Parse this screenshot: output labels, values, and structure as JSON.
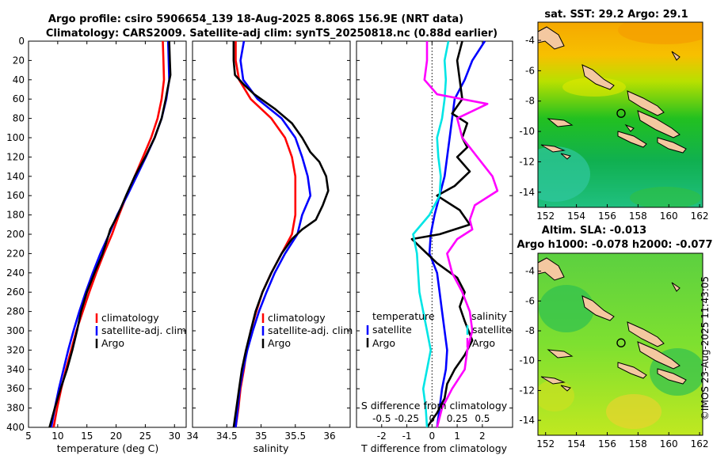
{
  "header": {
    "title_line1": "Argo profile: csiro 5906654_139 18-Aug-2025 8.806S 156.9E (NRT data)",
    "title_line2": "Climatology: CARS2009. Satellite-adj clim: synTS_20250818.nc (0.88d earlier)"
  },
  "footer": {
    "copyright": "©IMOS 23-Aug-2025 11:43:05"
  },
  "colors": {
    "climatology": "#ff0000",
    "satellite": "#0000ff",
    "argo": "#000000",
    "satellite_salinity": "#00e5e5",
    "argo_salinity": "#ff00ff",
    "land": "#f4c8a0"
  },
  "chart_data": [
    {
      "type": "line",
      "name": "temperature-profile",
      "xlabel": "temperature (deg C)",
      "ylabel": "",
      "xlim": [
        5,
        32
      ],
      "ylim": [
        0,
        400
      ],
      "y_reversed": true,
      "x_ticks": [
        5,
        10,
        15,
        20,
        25,
        30
      ],
      "y_ticks": [
        0,
        20,
        40,
        60,
        80,
        100,
        120,
        140,
        160,
        180,
        200,
        220,
        240,
        260,
        280,
        300,
        320,
        340,
        360,
        380,
        400
      ],
      "legend": [
        "climatology",
        "satellite-adj. clim",
        "Argo"
      ],
      "series": [
        {
          "name": "climatology",
          "color": "#ff0000",
          "points": [
            [
              28,
              0
            ],
            [
              28.1,
              20
            ],
            [
              28.2,
              40
            ],
            [
              27.8,
              60
            ],
            [
              27.1,
              80
            ],
            [
              26,
              100
            ],
            [
              24.6,
              120
            ],
            [
              23.2,
              140
            ],
            [
              21.8,
              160
            ],
            [
              20.5,
              180
            ],
            [
              19.3,
              200
            ],
            [
              17.9,
              220
            ],
            [
              16.6,
              240
            ],
            [
              15.4,
              260
            ],
            [
              14.3,
              280
            ],
            [
              13.2,
              300
            ],
            [
              12.3,
              320
            ],
            [
              11.4,
              340
            ],
            [
              10.6,
              360
            ],
            [
              9.9,
              380
            ],
            [
              9.3,
              400
            ]
          ]
        },
        {
          "name": "satellite-adj. clim",
          "color": "#0000ff",
          "points": [
            [
              28.9,
              0
            ],
            [
              29,
              20
            ],
            [
              29.1,
              40
            ],
            [
              28.6,
              60
            ],
            [
              27.8,
              80
            ],
            [
              26.6,
              100
            ],
            [
              25.1,
              120
            ],
            [
              23.5,
              140
            ],
            [
              21.9,
              160
            ],
            [
              20.2,
              180
            ],
            [
              18.8,
              200
            ],
            [
              17.3,
              220
            ],
            [
              16,
              240
            ],
            [
              14.8,
              260
            ],
            [
              13.7,
              280
            ],
            [
              12.7,
              300
            ],
            [
              11.8,
              320
            ],
            [
              11,
              340
            ],
            [
              10.2,
              360
            ],
            [
              9.5,
              380
            ],
            [
              8.9,
              400
            ]
          ]
        },
        {
          "name": "Argo",
          "color": "#000000",
          "points": [
            [
              29.1,
              0
            ],
            [
              29.2,
              20
            ],
            [
              29.3,
              35
            ],
            [
              28.8,
              50
            ],
            [
              28.5,
              60
            ],
            [
              27.8,
              80
            ],
            [
              26.6,
              100
            ],
            [
              25,
              120
            ],
            [
              23.2,
              140
            ],
            [
              21.7,
              160
            ],
            [
              20.3,
              180
            ],
            [
              19,
              195
            ],
            [
              18.5,
              205
            ],
            [
              17.7,
              220
            ],
            [
              16.3,
              240
            ],
            [
              15,
              260
            ],
            [
              14,
              280
            ],
            [
              13.3,
              300
            ],
            [
              12.5,
              320
            ],
            [
              11.6,
              340
            ],
            [
              10.5,
              360
            ],
            [
              9.5,
              380
            ],
            [
              8.6,
              400
            ]
          ]
        }
      ]
    },
    {
      "type": "line",
      "name": "salinity-profile",
      "xlabel": "salinity",
      "ylabel": "",
      "xlim": [
        34,
        36.3
      ],
      "ylim": [
        0,
        400
      ],
      "y_reversed": true,
      "x_ticks": [
        34,
        34.5,
        35,
        35.5,
        36
      ],
      "legend": [
        "climatology",
        "satellite-adj. clim",
        "Argo"
      ],
      "series": [
        {
          "name": "climatology",
          "color": "#ff0000",
          "points": [
            [
              34.63,
              0
            ],
            [
              34.63,
              20
            ],
            [
              34.68,
              40
            ],
            [
              34.85,
              60
            ],
            [
              35.15,
              80
            ],
            [
              35.35,
              100
            ],
            [
              35.45,
              120
            ],
            [
              35.5,
              140
            ],
            [
              35.5,
              160
            ],
            [
              35.5,
              180
            ],
            [
              35.45,
              200
            ],
            [
              35.3,
              220
            ],
            [
              35.15,
              240
            ],
            [
              35.02,
              260
            ],
            [
              34.93,
              280
            ],
            [
              34.85,
              300
            ],
            [
              34.79,
              320
            ],
            [
              34.75,
              340
            ],
            [
              34.7,
              360
            ],
            [
              34.67,
              380
            ],
            [
              34.63,
              400
            ]
          ]
        },
        {
          "name": "satellite-adj. clim",
          "color": "#0000ff",
          "points": [
            [
              34.75,
              0
            ],
            [
              34.7,
              20
            ],
            [
              34.74,
              40
            ],
            [
              34.95,
              60
            ],
            [
              35.3,
              80
            ],
            [
              35.5,
              100
            ],
            [
              35.6,
              120
            ],
            [
              35.68,
              140
            ],
            [
              35.72,
              160
            ],
            [
              35.6,
              180
            ],
            [
              35.53,
              200
            ],
            [
              35.35,
              220
            ],
            [
              35.2,
              240
            ],
            [
              35.08,
              260
            ],
            [
              34.97,
              280
            ],
            [
              34.88,
              300
            ],
            [
              34.8,
              320
            ],
            [
              34.74,
              340
            ],
            [
              34.69,
              360
            ],
            [
              34.66,
              380
            ],
            [
              34.63,
              400
            ]
          ]
        },
        {
          "name": "Argo",
          "color": "#000000",
          "points": [
            [
              34.6,
              0
            ],
            [
              34.6,
              20
            ],
            [
              34.62,
              35
            ],
            [
              34.75,
              45
            ],
            [
              34.9,
              55
            ],
            [
              35.2,
              70
            ],
            [
              35.45,
              85
            ],
            [
              35.6,
              100
            ],
            [
              35.72,
              115
            ],
            [
              35.85,
              125
            ],
            [
              35.95,
              140
            ],
            [
              35.98,
              155
            ],
            [
              35.9,
              170
            ],
            [
              35.8,
              185
            ],
            [
              35.6,
              195
            ],
            [
              35.45,
              205
            ],
            [
              35.3,
              220
            ],
            [
              35.15,
              240
            ],
            [
              35.02,
              260
            ],
            [
              34.92,
              280
            ],
            [
              34.85,
              300
            ],
            [
              34.78,
              320
            ],
            [
              34.72,
              340
            ],
            [
              34.68,
              360
            ],
            [
              34.64,
              380
            ],
            [
              34.6,
              400
            ]
          ]
        }
      ]
    },
    {
      "type": "line",
      "name": "difference-profile",
      "xlabel": "T difference from climatology",
      "x2label": "S difference from climatology",
      "ylabel": "",
      "xlim": [
        -3,
        3.2
      ],
      "ylim": [
        0,
        400
      ],
      "y_reversed": true,
      "x_ticks": [
        -2,
        -1,
        0,
        1,
        2
      ],
      "x2_ticks": [
        -0.5,
        -0.25,
        0,
        0.25,
        0.5
      ],
      "x2_tick_labels": [
        "-0.5",
        "-0.25",
        "0",
        "0.25",
        "0.5"
      ],
      "x2_scale": 4,
      "legend_temperature_title": "temperature",
      "legend_salinity_title": "salinity",
      "legend_temperature": [
        "satellite",
        "Argo"
      ],
      "legend_salinity": [
        "satellite",
        "Argo"
      ],
      "series": [
        {
          "name": "temperature satellite",
          "color": "#0000ff",
          "points": [
            [
              2.1,
              0
            ],
            [
              1.6,
              20
            ],
            [
              1.3,
              40
            ],
            [
              0.9,
              60
            ],
            [
              0.8,
              80
            ],
            [
              0.7,
              100
            ],
            [
              0.6,
              120
            ],
            [
              0.5,
              140
            ],
            [
              0.3,
              160
            ],
            [
              0.1,
              180
            ],
            [
              -0.05,
              200
            ],
            [
              -0.1,
              220
            ],
            [
              0.2,
              240
            ],
            [
              0.3,
              260
            ],
            [
              0.4,
              280
            ],
            [
              0.5,
              300
            ],
            [
              0.6,
              320
            ],
            [
              0.55,
              340
            ],
            [
              0.4,
              360
            ],
            [
              0.3,
              380
            ],
            [
              0.2,
              400
            ]
          ]
        },
        {
          "name": "temperature Argo",
          "color": "#000000",
          "points": [
            [
              1.2,
              0
            ],
            [
              1.0,
              20
            ],
            [
              1.1,
              40
            ],
            [
              1.2,
              60
            ],
            [
              0.8,
              75
            ],
            [
              1.4,
              85
            ],
            [
              1.2,
              100
            ],
            [
              1.4,
              110
            ],
            [
              1.0,
              120
            ],
            [
              1.5,
              135
            ],
            [
              0.9,
              150
            ],
            [
              0.2,
              160
            ],
            [
              1.1,
              175
            ],
            [
              1.5,
              190
            ],
            [
              0.3,
              200
            ],
            [
              -0.8,
              205
            ],
            [
              -0.4,
              215
            ],
            [
              0.2,
              230
            ],
            [
              1.0,
              245
            ],
            [
              1.3,
              260
            ],
            [
              1.1,
              275
            ],
            [
              1.3,
              290
            ],
            [
              1.6,
              310
            ],
            [
              1.3,
              325
            ],
            [
              0.9,
              340
            ],
            [
              0.6,
              355
            ],
            [
              0.5,
              370
            ],
            [
              0.2,
              385
            ],
            [
              -0.2,
              400
            ]
          ]
        },
        {
          "name": "salinity satellite",
          "color": "#00e5e5",
          "points": [
            [
              0.65,
              0
            ],
            [
              0.5,
              20
            ],
            [
              0.55,
              40
            ],
            [
              0.5,
              60
            ],
            [
              0.4,
              80
            ],
            [
              0.2,
              100
            ],
            [
              0.25,
              120
            ],
            [
              0.35,
              140
            ],
            [
              0.3,
              160
            ],
            [
              -0.1,
              180
            ],
            [
              -0.75,
              200
            ],
            [
              -0.6,
              220
            ],
            [
              -0.55,
              240
            ],
            [
              -0.5,
              260
            ],
            [
              -0.35,
              280
            ],
            [
              -0.2,
              300
            ],
            [
              -0.05,
              320
            ],
            [
              -0.2,
              340
            ],
            [
              -0.35,
              360
            ],
            [
              -0.25,
              380
            ],
            [
              -0.2,
              400
            ]
          ]
        },
        {
          "name": "salinity Argo",
          "color": "#ff00ff",
          "points": [
            [
              -0.2,
              0
            ],
            [
              -0.2,
              20
            ],
            [
              -0.3,
              40
            ],
            [
              0.2,
              55
            ],
            [
              2.2,
              65
            ],
            [
              1.0,
              80
            ],
            [
              1.2,
              100
            ],
            [
              1.8,
              120
            ],
            [
              2.4,
              140
            ],
            [
              2.6,
              155
            ],
            [
              1.7,
              170
            ],
            [
              1.5,
              185
            ],
            [
              1.6,
              195
            ],
            [
              1.0,
              205
            ],
            [
              0.6,
              220
            ],
            [
              0.8,
              240
            ],
            [
              1.2,
              260
            ],
            [
              1.5,
              280
            ],
            [
              1.6,
              300
            ],
            [
              1.4,
              320
            ],
            [
              1.3,
              340
            ],
            [
              0.8,
              360
            ],
            [
              0.4,
              380
            ],
            [
              0.2,
              400
            ]
          ]
        }
      ]
    },
    {
      "type": "heatmap",
      "name": "sst-map",
      "title": "sat. SST: 29.2 Argo: 29.1",
      "xlim": [
        151.5,
        162.2
      ],
      "ylim": [
        -15,
        -2.8
      ],
      "x_ticks": [
        152,
        154,
        156,
        158,
        160,
        162
      ],
      "y_ticks": [
        -4,
        -6,
        -8,
        -10,
        -12,
        -14
      ],
      "argo_position": [
        156.9,
        -8.806
      ]
    },
    {
      "type": "heatmap",
      "name": "sla-map",
      "title": "Altim. SLA: -0.013",
      "subtitle": "Argo h1000: -0.078 h2000: -0.077",
      "xlim": [
        151.5,
        162.2
      ],
      "ylim": [
        -15,
        -2.8
      ],
      "x_ticks": [
        152,
        154,
        156,
        158,
        160,
        162
      ],
      "y_ticks": [
        -4,
        -6,
        -8,
        -10,
        -12,
        -14
      ],
      "argo_position": [
        156.9,
        -8.806
      ]
    }
  ]
}
